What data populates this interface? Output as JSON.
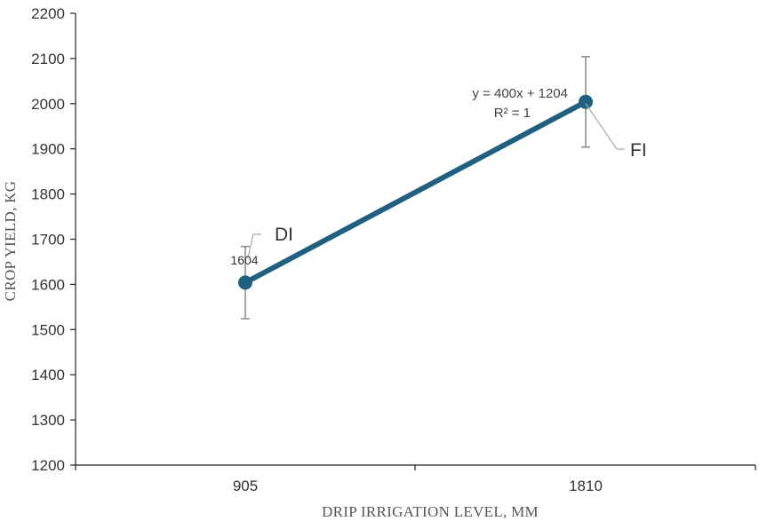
{
  "chart_data": {
    "type": "line",
    "xlabel": "DRIP IRRIGATION LEVEL, MM",
    "ylabel": "CROP YIELD, KG",
    "categories": [
      "905",
      "1810"
    ],
    "ylim": [
      1200,
      2200
    ],
    "y_ticks": [
      "1200",
      "1300",
      "1400",
      "1500",
      "1600",
      "1700",
      "1800",
      "1900",
      "2000",
      "2100",
      "2200"
    ],
    "series": [
      {
        "values": [
          1604,
          2004
        ],
        "error": [
          80,
          100
        ],
        "color": "#1f5f80",
        "point_labels": [
          "DI",
          "FI"
        ]
      }
    ],
    "data_labels": [
      "1604"
    ],
    "trendline": {
      "equation": "y = 400x + 1204",
      "r_squared": "R² = 1"
    },
    "grid": false,
    "legend": "none"
  }
}
